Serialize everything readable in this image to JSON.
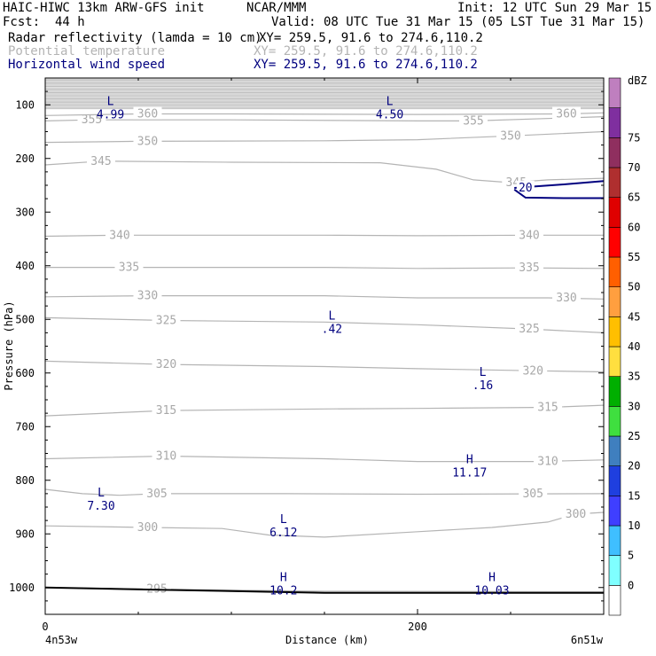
{
  "header": {
    "model": "HAIC-HIWC 13km ARW-GFS init",
    "org": "NCAR/MMM",
    "init": "Init: 12 UTC Sun 29 Mar 15",
    "fcst_label": "Fcst:",
    "fcst_value": "44 h",
    "valid": "Valid: 08 UTC Tue 31 Mar 15 (05 LST Tue 31 Mar 15)",
    "fields": [
      {
        "name": "Radar reflectivity (lamda = 10 cm)",
        "xy": "XY= 259.5, 91.6 to 274.6,110.2",
        "color": "#000000"
      },
      {
        "name": "Potential temperature",
        "xy": "XY= 259.5, 91.6 to 274.6,110.2",
        "color": "#b4b4b4"
      },
      {
        "name": "Horizontal wind speed",
        "xy": "XY= 259.5, 91.6 to 274.6,110.2",
        "color": "#00007f"
      }
    ]
  },
  "chart_data": {
    "type": "contour",
    "ylabel": "Pressure (hPa)",
    "xlabel": "Distance (km)",
    "x_ticks": [
      0,
      200
    ],
    "x_range": [
      0,
      300
    ],
    "y_ticks": [
      100,
      200,
      300,
      400,
      500,
      600,
      700,
      800,
      900,
      1000
    ],
    "y_range": [
      50,
      1050
    ],
    "left_location": "4n53w",
    "right_location": "6n51w",
    "theta_isentropes": [
      {
        "value": 295,
        "points": [
          [
            0,
            1000
          ],
          [
            60,
            1003
          ],
          [
            150,
            1007
          ],
          [
            300,
            1008
          ]
        ],
        "labels": [
          [
            60,
            1003
          ]
        ]
      },
      {
        "value": 300,
        "points": [
          [
            0,
            885
          ],
          [
            55,
            888
          ],
          [
            95,
            890
          ],
          [
            120,
            902
          ],
          [
            150,
            906
          ],
          [
            200,
            896
          ],
          [
            240,
            888
          ],
          [
            270,
            878
          ],
          [
            285,
            863
          ],
          [
            300,
            860
          ]
        ],
        "labels": [
          [
            55,
            888
          ],
          [
            285,
            863
          ]
        ]
      },
      {
        "value": 305,
        "points": [
          [
            0,
            817
          ],
          [
            20,
            825
          ],
          [
            40,
            828
          ],
          [
            60,
            825
          ],
          [
            130,
            825
          ],
          [
            200,
            826
          ],
          [
            300,
            825
          ]
        ],
        "labels": [
          [
            60,
            825
          ],
          [
            262,
            825
          ]
        ]
      },
      {
        "value": 310,
        "points": [
          [
            0,
            760
          ],
          [
            65,
            755
          ],
          [
            150,
            760
          ],
          [
            200,
            765
          ],
          [
            265,
            765
          ],
          [
            300,
            762
          ]
        ],
        "labels": [
          [
            65,
            755
          ],
          [
            270,
            765
          ]
        ]
      },
      {
        "value": 315,
        "points": [
          [
            0,
            680
          ],
          [
            65,
            670
          ],
          [
            150,
            667
          ],
          [
            200,
            666
          ],
          [
            270,
            664
          ],
          [
            300,
            660
          ]
        ],
        "labels": [
          [
            65,
            670
          ],
          [
            270,
            664
          ]
        ]
      },
      {
        "value": 320,
        "points": [
          [
            0,
            578
          ],
          [
            65,
            584
          ],
          [
            150,
            588
          ],
          [
            200,
            592
          ],
          [
            265,
            596
          ],
          [
            300,
            598
          ]
        ],
        "labels": [
          [
            65,
            584
          ],
          [
            262,
            596
          ]
        ]
      },
      {
        "value": 325,
        "points": [
          [
            0,
            497
          ],
          [
            65,
            502
          ],
          [
            150,
            505
          ],
          [
            200,
            510
          ],
          [
            260,
            518
          ],
          [
            300,
            525
          ]
        ],
        "labels": [
          [
            65,
            502
          ],
          [
            260,
            518
          ]
        ]
      },
      {
        "value": 330,
        "points": [
          [
            0,
            458
          ],
          [
            55,
            456
          ],
          [
            150,
            456
          ],
          [
            200,
            460
          ],
          [
            270,
            460
          ],
          [
            300,
            462
          ]
        ],
        "labels": [
          [
            55,
            456
          ],
          [
            280,
            460
          ]
        ]
      },
      {
        "value": 335,
        "points": [
          [
            0,
            403
          ],
          [
            45,
            403
          ],
          [
            150,
            403
          ],
          [
            200,
            405
          ],
          [
            260,
            404
          ],
          [
            300,
            405
          ]
        ],
        "labels": [
          [
            45,
            403
          ],
          [
            260,
            404
          ]
        ]
      },
      {
        "value": 340,
        "points": [
          [
            0,
            345
          ],
          [
            40,
            343
          ],
          [
            150,
            343
          ],
          [
            200,
            344
          ],
          [
            260,
            343
          ],
          [
            300,
            343
          ]
        ],
        "labels": [
          [
            40,
            343
          ],
          [
            260,
            343
          ]
        ]
      },
      {
        "value": 345,
        "points": [
          [
            0,
            212
          ],
          [
            30,
            205
          ],
          [
            100,
            207
          ],
          [
            180,
            208
          ],
          [
            210,
            220
          ],
          [
            230,
            240
          ],
          [
            250,
            245
          ],
          [
            270,
            240
          ],
          [
            300,
            237
          ]
        ],
        "labels": [
          [
            30,
            205
          ],
          [
            253,
            245
          ]
        ]
      },
      {
        "value": 350,
        "points": [
          [
            0,
            170
          ],
          [
            50,
            168
          ],
          [
            150,
            167
          ],
          [
            200,
            165
          ],
          [
            250,
            158
          ],
          [
            300,
            150
          ]
        ],
        "labels": [
          [
            55,
            168
          ],
          [
            250,
            158
          ]
        ]
      },
      {
        "value": 355,
        "points": [
          [
            0,
            130
          ],
          [
            25,
            128
          ],
          [
            100,
            128
          ],
          [
            200,
            130
          ],
          [
            230,
            130
          ],
          [
            300,
            122
          ]
        ],
        "labels": [
          [
            25,
            128
          ],
          [
            230,
            130
          ]
        ]
      },
      {
        "value": 360,
        "points": [
          [
            0,
            120
          ],
          [
            50,
            117
          ],
          [
            100,
            117
          ],
          [
            200,
            118
          ],
          [
            280,
            117
          ],
          [
            300,
            115
          ]
        ],
        "labels": [
          [
            55,
            117
          ],
          [
            280,
            117
          ]
        ]
      }
    ],
    "top_stratospheric_band": {
      "from": 50,
      "to": 108
    },
    "wind_contours": [
      {
        "value": 20,
        "points": [
          [
            252,
            255
          ],
          [
            260,
            253
          ],
          [
            280,
            248
          ],
          [
            300,
            242
          ]
        ],
        "label": [
          258,
          253
        ]
      },
      {
        "value": 20,
        "points": [
          [
            252,
            258
          ],
          [
            258,
            273
          ],
          [
            280,
            274
          ],
          [
            300,
            274
          ]
        ],
        "label": null
      }
    ],
    "surface": {
      "points": [
        [
          0,
          1000
        ],
        [
          60,
          1004
        ],
        [
          150,
          1010
        ],
        [
          300,
          1010
        ]
      ]
    },
    "extrema": [
      {
        "kind": "L",
        "value": "4.99",
        "x": 35,
        "y": 100,
        "color": "#00007f"
      },
      {
        "kind": "L",
        "value": "4.50",
        "x": 185,
        "y": 100,
        "color": "#00007f"
      },
      {
        "kind": "L",
        "value": ".42",
        "x": 154,
        "y": 500,
        "color": "#00007f"
      },
      {
        "kind": "L",
        "value": ".16",
        "x": 235,
        "y": 605,
        "color": "#00007f"
      },
      {
        "kind": "H",
        "value": "11.17",
        "x": 228,
        "y": 768,
        "color": "#00007f"
      },
      {
        "kind": "L",
        "value": "7.30",
        "x": 30,
        "y": 830,
        "color": "#00007f"
      },
      {
        "kind": "L",
        "value": "6.12",
        "x": 128,
        "y": 880,
        "color": "#00007f"
      },
      {
        "kind": "H",
        "value": "10.2",
        "x": 128,
        "y": 988,
        "color": "#00007f"
      },
      {
        "kind": "H",
        "value": "10.03",
        "x": 240,
        "y": 988,
        "color": "#00007f"
      }
    ]
  },
  "colorbar": {
    "unit": "dBZ",
    "levels": [
      "0",
      "5",
      "10",
      "15",
      "20",
      "25",
      "30",
      "35",
      "40",
      "45",
      "50",
      "55",
      "60",
      "65",
      "70",
      "75"
    ],
    "colors": [
      "#ffffff",
      "#7fffff",
      "#3fbfff",
      "#3f3fff",
      "#1f3fdf",
      "#3f7fbf",
      "#3fdf3f",
      "#00af00",
      "#ffdf3f",
      "#ffbf00",
      "#ff9f3f",
      "#ff5f00",
      "#ff0000",
      "#df0000",
      "#af2f2f",
      "#8f2f5f",
      "#7f2f9f",
      "#bf7fbf"
    ]
  }
}
